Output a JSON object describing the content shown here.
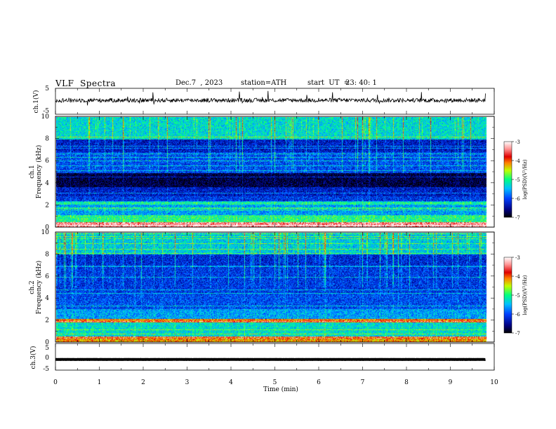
{
  "header": {
    "title": "VLF  Spectra",
    "date": "Dec.7  , 2023",
    "station": "station=ATH",
    "start_label": "start  UT  =",
    "start_time": "23: 40: 1"
  },
  "chart_data": [
    {
      "id": "ch1_waveform",
      "type": "line",
      "ylabel": "ch.1(V)",
      "ylim": [
        -5,
        5
      ],
      "yticks": [
        "5",
        "-5"
      ],
      "x": [
        0,
        9.8
      ],
      "baseline": 0.4,
      "color": "#000000"
    },
    {
      "id": "ch1_spectrogram",
      "type": "heatmap",
      "ylabel_top": "ch.1",
      "ylabel": "Frequency  (kHz)",
      "ylim": [
        0,
        10
      ],
      "yticks": [
        "0",
        "2",
        "4",
        "6",
        "8",
        "10"
      ],
      "xlim": [
        0,
        10
      ],
      "data_xmax": 9.8,
      "colorbar": {
        "label": "log(PSD)(V²/Hz)",
        "range": [
          -7,
          -3
        ],
        "ticks": [
          "-3",
          "-4",
          "-5",
          "-6",
          "-7"
        ]
      },
      "bands_khz": [
        {
          "from": 0,
          "to": 0.4,
          "level": -3.4
        },
        {
          "from": 0.4,
          "to": 1.0,
          "level": -5.0
        },
        {
          "from": 1.0,
          "to": 2.0,
          "level": -5.6
        },
        {
          "from": 2.0,
          "to": 2.3,
          "level": -5.1
        },
        {
          "from": 2.3,
          "to": 2.8,
          "level": -6.1
        },
        {
          "from": 2.8,
          "to": 3.6,
          "level": -6.3
        },
        {
          "from": 3.6,
          "to": 4.9,
          "level": -6.8
        },
        {
          "from": 4.9,
          "to": 6.8,
          "level": -6.0
        },
        {
          "from": 6.8,
          "to": 8.0,
          "level": -6.3
        },
        {
          "from": 8.0,
          "to": 10.0,
          "level": -5.3
        }
      ]
    },
    {
      "id": "ch2_spectrogram",
      "type": "heatmap",
      "ylabel_top": "ch.2",
      "ylabel": "Frequency  (kHz)",
      "ylim": [
        0,
        10
      ],
      "yticks": [
        "0",
        "2",
        "4",
        "6",
        "8",
        "10"
      ],
      "xlim": [
        0,
        10
      ],
      "data_xmax": 9.8,
      "colorbar": {
        "label": "log(PSD)(V²/Hz)",
        "range": [
          -7,
          -3
        ],
        "ticks": [
          "-3",
          "-4",
          "-5",
          "-6",
          "-7"
        ]
      },
      "bands_khz": [
        {
          "from": 0,
          "to": 0.5,
          "level": -4.2
        },
        {
          "from": 0.5,
          "to": 1.8,
          "level": -5.3
        },
        {
          "from": 1.8,
          "to": 2.1,
          "level": -4.1
        },
        {
          "from": 2.1,
          "to": 3.0,
          "level": -5.6
        },
        {
          "from": 3.0,
          "to": 4.5,
          "level": -6.0
        },
        {
          "from": 4.5,
          "to": 6.8,
          "level": -6.1
        },
        {
          "from": 6.8,
          "to": 8.0,
          "level": -6.2
        },
        {
          "from": 8.0,
          "to": 10.0,
          "level": -5.4
        }
      ]
    },
    {
      "id": "ch3_waveform",
      "type": "line",
      "ylabel": "ch.3(V)",
      "ylim": [
        -5,
        5
      ],
      "yticks": [
        "5",
        "0",
        "-5"
      ],
      "x": [
        0,
        9.8
      ],
      "baseline": -1.0,
      "color": "#000000"
    }
  ],
  "xaxis": {
    "label": "Time  (min)",
    "range": [
      0,
      10
    ],
    "ticks": [
      "0",
      "1",
      "2",
      "3",
      "4",
      "5",
      "6",
      "7",
      "8",
      "9",
      "10"
    ]
  }
}
